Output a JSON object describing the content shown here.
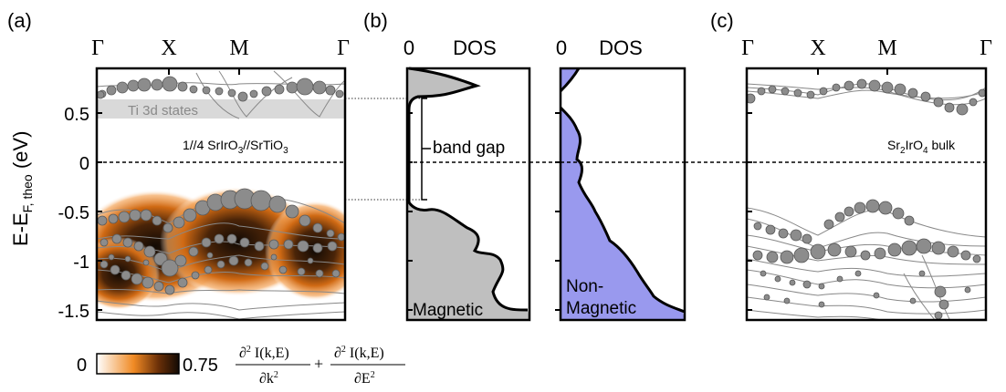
{
  "panels": {
    "a": {
      "label": "(a)",
      "kpoints": [
        "Γ",
        "X",
        "M",
        "Γ"
      ],
      "ylabel": "E-E",
      "ylabel_sub": "F, theo",
      "ylabel_unit": " (eV)",
      "yticks": [
        "0.5",
        "0",
        "-0.5",
        "-1",
        "-1.5"
      ],
      "ti_label": "Ti 3d states",
      "system_label_1": "1//4 SrIrO",
      "system_label_2": "//SrTiO",
      "sub3": "3"
    },
    "b": {
      "label": "(b)",
      "left_zero": "0",
      "left_title": "DOS",
      "right_zero": "0",
      "right_title": "DOS",
      "gap_label": "band gap",
      "magnetic_label": "Magnetic",
      "nonmag_label_1": "Non-",
      "nonmag_label_2": "Magnetic"
    },
    "c": {
      "label": "(c)",
      "kpoints": [
        "Γ",
        "X",
        "M",
        "Γ"
      ],
      "bulk_label_1": "Sr",
      "bulk_sub_1": "2",
      "bulk_label_2": "IrO",
      "bulk_sub_2": "4",
      "bulk_label_3": " bulk"
    }
  },
  "colorbar": {
    "min": "0",
    "max": "0.75",
    "d2": "∂",
    "sup2": "2",
    "num": " I(k,E)",
    "den_k": "∂k",
    "den_e": "∂E",
    "plus": "+"
  },
  "colors": {
    "orange": "#f08a24",
    "dark": "#1a0f05",
    "grey_marker": "#8c8c8c",
    "ti_band": "#d9d9d9",
    "dos_magnetic": "#bfbfbf",
    "dos_nonmagnetic": "#9999ee"
  },
  "chart_data": {
    "type": "line",
    "energy_range_ev": [
      -1.65,
      0.9
    ],
    "fermi_level_ev": 0,
    "gap_edges_ev": [
      -0.38,
      0.63
    ],
    "ti_3d_states_ev": [
      0.44,
      0.63
    ]
  }
}
